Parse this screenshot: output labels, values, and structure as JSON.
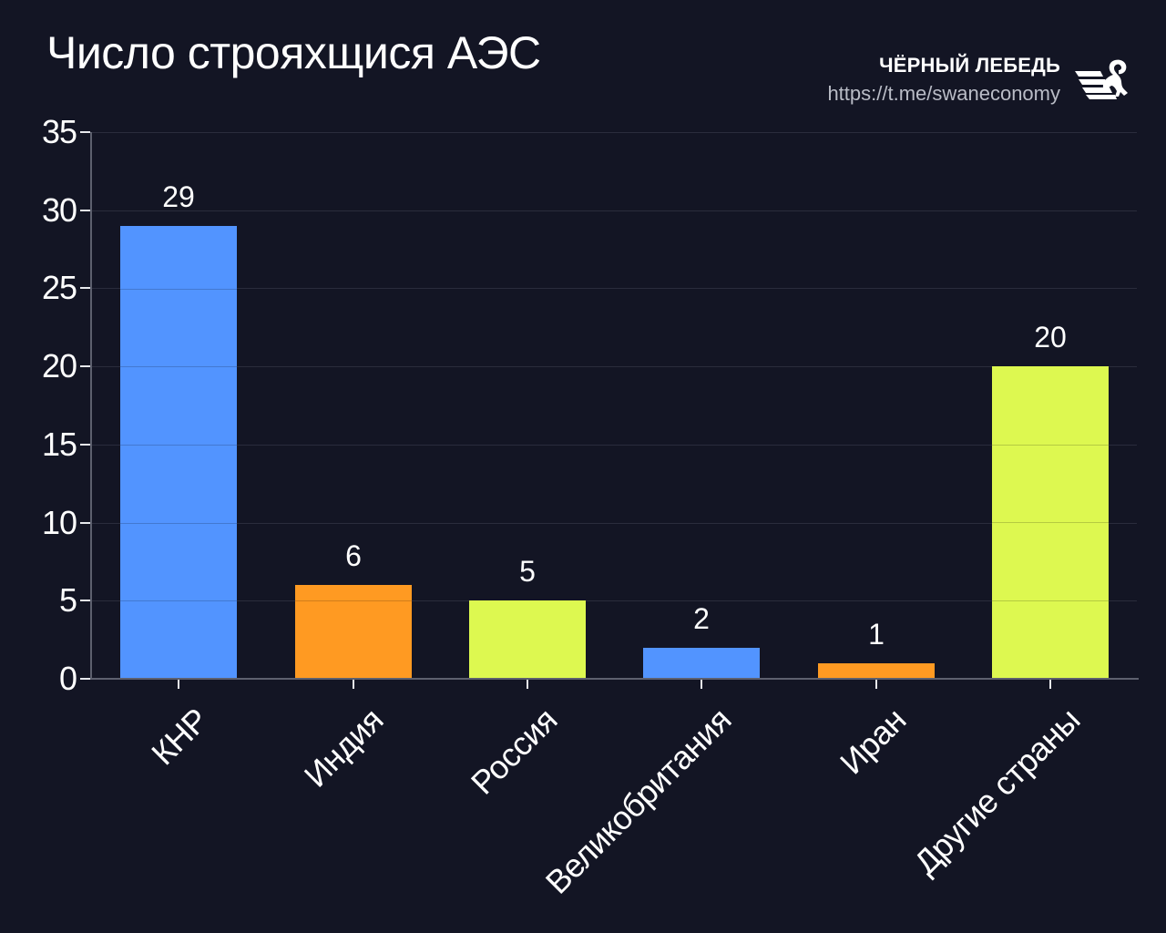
{
  "header": {
    "title": "Число строяхщися АЭС",
    "brand_name": "ЧЁРНЫЙ ЛЕБЕДЬ",
    "brand_url": "https://t.me/swaneconomy",
    "logo_icon": "swan-logo-icon"
  },
  "colors": {
    "background": "#131524",
    "blue": "#5294FF",
    "orange": "#FF9A22",
    "lime": "#DDF850",
    "axis": "#5D606E",
    "grid": "#2A2C3C"
  },
  "chart_data": {
    "type": "bar",
    "title": "Число строяхщися АЭС",
    "xlabel": "",
    "ylabel": "",
    "categories": [
      "КНР",
      "Индия",
      "Россия",
      "Великобритания",
      "Иран",
      "Другие страны"
    ],
    "values": [
      29,
      6,
      5,
      2,
      1,
      20
    ],
    "bar_colors": [
      "#5294FF",
      "#FF9A22",
      "#DDF850",
      "#5294FF",
      "#FF9A22",
      "#DDF850"
    ],
    "data_labels": [
      "29",
      "6",
      "5",
      "2",
      "1",
      "20"
    ],
    "ylim": [
      0,
      35
    ],
    "yticks": [
      0,
      5,
      10,
      15,
      20,
      25,
      30,
      35
    ],
    "ytick_labels": [
      "0",
      "5",
      "10",
      "15",
      "20",
      "25",
      "30",
      "35"
    ],
    "grid": true,
    "grid_axis": "y",
    "legend": null,
    "xtick_rotation": 45
  }
}
